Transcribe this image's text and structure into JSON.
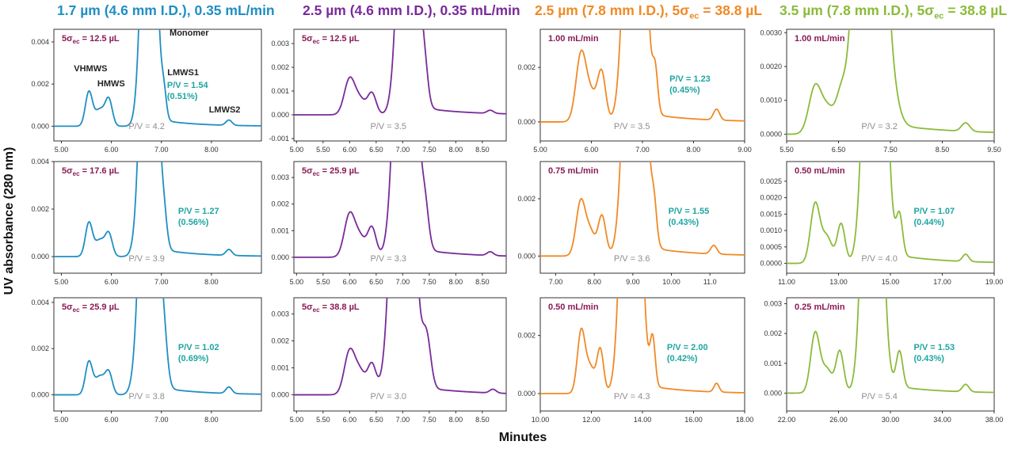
{
  "figure": {
    "ylabel": "UV absorbance (280 nm)",
    "xlabel": "Minutes"
  },
  "columns": [
    {
      "title": "1.7 µm (4.6 mm I.D.), 0.35 mL/min",
      "color": "#1f8fc2"
    },
    {
      "title": "2.5 µm (4.6 mm I.D.), 0.35 mL/min",
      "color": "#7a2a9a"
    },
    {
      "title_prefix": "2.5 µm (7.8 mm I.D.), 5σ",
      "title_sub": "ec",
      "title_suffix": " = 38.8 µL",
      "color": "#f08a26"
    },
    {
      "title_prefix": "3.5 µm (7.8 mm I.D.), 5σ",
      "title_sub": "ec",
      "title_suffix": " = 38.8 µL",
      "color": "#8bbb3a"
    }
  ],
  "chart_data": [
    {
      "type": "line",
      "row": 0,
      "col": 0,
      "xlim": [
        4.85,
        9.0
      ],
      "ylim": [
        -0.0007,
        0.0046
      ],
      "xticks": [
        "5.00",
        "6.00",
        "7.00",
        "8.00"
      ],
      "xtick_values": [
        5,
        6,
        7,
        8
      ],
      "yticks": [
        "0.000",
        "0.002",
        "0.004"
      ],
      "ytick_values": [
        0,
        0.002,
        0.004
      ],
      "label_prefix": "5σ",
      "label_sub": "ec",
      "label_suffix": " = 12.5 µL",
      "pv_main": "P/V = 4.2",
      "pv_lmw": "P/V = 1.54",
      "pv_pct": "(0.51%)",
      "peak_labels": [
        "VHMWS",
        "HMWS",
        "Monomer",
        "LMWS1",
        "LMWS2"
      ],
      "baseline": 0,
      "monomer_t": 6.75,
      "monomer_w": 0.12,
      "peaks": [
        [
          5.55,
          0.0016,
          0.07
        ],
        [
          5.77,
          0.0008,
          0.1
        ],
        [
          5.95,
          0.0012,
          0.07
        ],
        [
          7.05,
          0.0011,
          0.05
        ],
        [
          8.35,
          0.00025,
          0.06
        ]
      ]
    },
    {
      "type": "line",
      "row": 0,
      "col": 1,
      "xlim": [
        4.95,
        8.95
      ],
      "ylim": [
        -0.0011,
        0.0036
      ],
      "xticks": [
        "5.00",
        "5.50",
        "6.00",
        "6.50",
        "7.00",
        "7.50",
        "8.00",
        "8.50"
      ],
      "xtick_values": [
        5,
        5.5,
        6,
        6.5,
        7,
        7.5,
        8,
        8.5
      ],
      "yticks": [
        "-0.001",
        "0.000",
        "0.001",
        "0.002",
        "0.003"
      ],
      "ytick_values": [
        -0.001,
        0,
        0.001,
        0.002,
        0.003
      ],
      "label_prefix": "5σ",
      "label_sub": "ec",
      "label_suffix": " = 12.5 µL",
      "pv_main": "P/V = 3.5",
      "baseline": 0,
      "monomer_t": 7.1,
      "monomer_w": 0.14,
      "peaks": [
        [
          6.0,
          0.0015,
          0.1
        ],
        [
          6.2,
          0.0006,
          0.1
        ],
        [
          6.42,
          0.0009,
          0.08
        ],
        [
          7.42,
          0.0011,
          0.06
        ],
        [
          8.65,
          0.00013,
          0.06
        ]
      ]
    },
    {
      "type": "line",
      "row": 0,
      "col": 2,
      "xlim": [
        5.0,
        9.0
      ],
      "ylim": [
        -0.0007,
        0.0034
      ],
      "xticks": [
        "5.00",
        "6.00",
        "7.00",
        "8.00",
        "9.00"
      ],
      "xtick_values": [
        5,
        6,
        7,
        8,
        9
      ],
      "yticks": [
        "0.000",
        "0.002"
      ],
      "ytick_values": [
        0,
        0.002
      ],
      "label": "1.00 mL/min",
      "pv_main": "P/V = 3.5",
      "pv_lmw": "P/V = 1.23",
      "pv_pct": "(0.45%)",
      "baseline": 0,
      "monomer_t": 6.85,
      "monomer_w": 0.15,
      "peaks": [
        [
          5.8,
          0.0025,
          0.1
        ],
        [
          6.0,
          0.0009,
          0.1
        ],
        [
          6.2,
          0.0018,
          0.08
        ],
        [
          7.25,
          0.0014,
          0.05
        ],
        [
          8.45,
          0.0004,
          0.06
        ]
      ]
    },
    {
      "type": "line",
      "row": 0,
      "col": 3,
      "xlim": [
        5.5,
        9.5
      ],
      "ylim": [
        -0.0002,
        0.0031
      ],
      "xticks": [
        "5.50",
        "6.50",
        "7.50",
        "8.50",
        "9.50"
      ],
      "xtick_values": [
        5.5,
        6.5,
        7.5,
        8.5,
        9.5
      ],
      "yticks": [
        "0.0000",
        "0.0010",
        "0.0020",
        "0.0030"
      ],
      "ytick_values": [
        0,
        0.001,
        0.002,
        0.003
      ],
      "label": "1.00 mL/min",
      "pv_main": "P/V = 3.2",
      "baseline": 0,
      "monomer_t": 7.1,
      "monomer_w": 0.2,
      "peaks": [
        [
          6.05,
          0.0014,
          0.12
        ],
        [
          6.3,
          0.0007,
          0.12
        ],
        [
          6.55,
          0.001,
          0.1
        ],
        [
          7.5,
          0.0006,
          0.15
        ],
        [
          8.95,
          0.00025,
          0.08
        ]
      ]
    },
    {
      "type": "line",
      "row": 1,
      "col": 0,
      "xlim": [
        4.85,
        9.0
      ],
      "ylim": [
        -0.0007,
        0.004
      ],
      "xticks": [
        "5.00",
        "6.00",
        "7.00",
        "8.00"
      ],
      "xtick_values": [
        5,
        6,
        7,
        8
      ],
      "yticks": [
        "0.000",
        "0.002",
        "0.004"
      ],
      "ytick_values": [
        0,
        0.002,
        0.004
      ],
      "label_prefix": "5σ",
      "label_sub": "ec",
      "label_suffix": " = 17.6 µL",
      "pv_main": "P/V = 3.9",
      "pv_lmw": "P/V = 1.27",
      "pv_pct": "(0.56%)",
      "baseline": 0,
      "monomer_t": 6.75,
      "monomer_w": 0.13,
      "peaks": [
        [
          5.55,
          0.0014,
          0.07
        ],
        [
          5.77,
          0.0007,
          0.1
        ],
        [
          5.95,
          0.0009,
          0.07
        ],
        [
          7.05,
          0.0011,
          0.06
        ],
        [
          8.35,
          0.00025,
          0.06
        ]
      ]
    },
    {
      "type": "line",
      "row": 1,
      "col": 1,
      "xlim": [
        4.95,
        8.95
      ],
      "ylim": [
        -0.0006,
        0.0036
      ],
      "xticks": [
        "5.00",
        "5.50",
        "6.00",
        "6.50",
        "7.00",
        "7.50",
        "8.00",
        "8.50"
      ],
      "xtick_values": [
        5,
        5.5,
        6,
        6.5,
        7,
        7.5,
        8,
        8.5
      ],
      "yticks": [
        "0.000",
        "0.001",
        "0.002",
        "0.003"
      ],
      "ytick_values": [
        0,
        0.001,
        0.002,
        0.003
      ],
      "label_prefix": "5σ",
      "label_sub": "ec",
      "label_suffix": " = 25.9 µL",
      "pv_main": "P/V = 3.3",
      "baseline": 0,
      "monomer_t": 7.05,
      "monomer_w": 0.15,
      "peaks": [
        [
          6.0,
          0.0016,
          0.1
        ],
        [
          6.2,
          0.0007,
          0.1
        ],
        [
          6.42,
          0.0011,
          0.08
        ],
        [
          7.42,
          0.0014,
          0.07
        ],
        [
          8.65,
          0.00014,
          0.06
        ]
      ]
    },
    {
      "type": "line",
      "row": 1,
      "col": 2,
      "xlim": [
        6.6,
        11.9
      ],
      "ylim": [
        -0.0006,
        0.0033
      ],
      "xticks": [
        "7.00",
        "8.00",
        "9.00",
        "10.00",
        "11.0"
      ],
      "xtick_values": [
        7,
        8,
        9,
        10,
        11
      ],
      "yticks": [
        "0.000",
        "0.002"
      ],
      "ytick_values": [
        0,
        0.002
      ],
      "label": "0.75 mL/min",
      "pv_main": "P/V = 3.6",
      "pv_lmw": "P/V = 1.55",
      "pv_pct": "(0.43%)",
      "baseline": 0,
      "monomer_t": 9.05,
      "monomer_w": 0.2,
      "peaks": [
        [
          7.65,
          0.0019,
          0.12
        ],
        [
          7.9,
          0.0008,
          0.12
        ],
        [
          8.2,
          0.0014,
          0.1
        ],
        [
          9.55,
          0.0012,
          0.07
        ],
        [
          11.1,
          0.0003,
          0.08
        ]
      ]
    },
    {
      "type": "line",
      "row": 1,
      "col": 3,
      "xlim": [
        11.0,
        19.0
      ],
      "ylim": [
        -0.0003,
        0.0031
      ],
      "xticks": [
        "11.00",
        "13.00",
        "15.00",
        "17.00",
        "19.00"
      ],
      "xtick_values": [
        11,
        13,
        15,
        17,
        19
      ],
      "yticks": [
        "0.0000",
        "0.0005",
        "0.0010",
        "0.0015",
        "0.0020",
        "0.0025"
      ],
      "ytick_values": [
        0,
        0.0005,
        0.001,
        0.0015,
        0.002,
        0.0025
      ],
      "label": "0.50 mL/min",
      "pv_main": "P/V = 4.0",
      "pv_lmw": "P/V = 1.07",
      "pv_pct": "(0.44%)",
      "baseline": 0,
      "monomer_t": 14.4,
      "monomer_w": 0.3,
      "peaks": [
        [
          12.1,
          0.0018,
          0.18
        ],
        [
          12.55,
          0.0008,
          0.2
        ],
        [
          13.1,
          0.0012,
          0.15
        ],
        [
          15.35,
          0.0012,
          0.12
        ],
        [
          17.9,
          0.00022,
          0.12
        ]
      ]
    },
    {
      "type": "line",
      "row": 2,
      "col": 0,
      "xlim": [
        4.85,
        9.0
      ],
      "ylim": [
        -0.0007,
        0.0042
      ],
      "xticks": [
        "5.00",
        "6.00",
        "7.00",
        "8.00"
      ],
      "xtick_values": [
        5,
        6,
        7,
        8
      ],
      "yticks": [
        "0.000",
        "0.002",
        "0.004"
      ],
      "ytick_values": [
        0,
        0.002,
        0.004
      ],
      "label_prefix": "5σ",
      "label_sub": "ec",
      "label_suffix": " = 25.9 µL",
      "pv_main": "P/V = 3.8",
      "pv_lmw": "P/V = 1.02",
      "pv_pct": "(0.69%)",
      "baseline": 0,
      "monomer_t": 6.75,
      "monomer_w": 0.14,
      "peaks": [
        [
          5.55,
          0.0014,
          0.07
        ],
        [
          5.77,
          0.0008,
          0.1
        ],
        [
          5.95,
          0.0009,
          0.07
        ],
        [
          7.05,
          0.0016,
          0.07
        ],
        [
          8.35,
          0.00028,
          0.06
        ]
      ]
    },
    {
      "type": "line",
      "row": 2,
      "col": 1,
      "xlim": [
        4.95,
        8.95
      ],
      "ylim": [
        -0.0006,
        0.0036
      ],
      "xticks": [
        "5.00",
        "5.50",
        "6.00",
        "6.50",
        "7.00",
        "7.50",
        "8.00",
        "8.50"
      ],
      "xtick_values": [
        5,
        5.5,
        6,
        6.5,
        7,
        7.5,
        8,
        8.5
      ],
      "yticks": [
        "0.000",
        "0.001",
        "0.002",
        "0.003"
      ],
      "ytick_values": [
        0,
        0.001,
        0.002,
        0.003
      ],
      "label_prefix": "5σ",
      "label_sub": "ec",
      "label_suffix": " = 38.8 µL",
      "pv_main": "P/V = 3.0",
      "baseline": 0,
      "monomer_t": 7.0,
      "monomer_w": 0.16,
      "peaks": [
        [
          6.0,
          0.0016,
          0.1
        ],
        [
          6.2,
          0.0008,
          0.1
        ],
        [
          6.42,
          0.0011,
          0.08
        ],
        [
          7.45,
          0.0018,
          0.08
        ],
        [
          8.7,
          0.00014,
          0.06
        ]
      ]
    },
    {
      "type": "line",
      "row": 2,
      "col": 2,
      "xlim": [
        10.0,
        18.0
      ],
      "ylim": [
        -0.0006,
        0.0033
      ],
      "xticks": [
        "10.00",
        "12.00",
        "14.00",
        "16.00",
        "18.00"
      ],
      "xtick_values": [
        10,
        12,
        14,
        16,
        18
      ],
      "yticks": [
        "0.000",
        "0.002"
      ],
      "ytick_values": [
        0,
        0.002
      ],
      "label": "0.50 mL/min",
      "pv_main": "P/V = 4.3",
      "pv_lmw": "P/V = 2.00",
      "pv_pct": "(0.42%)",
      "baseline": 0,
      "monomer_t": 13.55,
      "monomer_w": 0.28,
      "peaks": [
        [
          11.6,
          0.0021,
          0.15
        ],
        [
          11.95,
          0.0009,
          0.18
        ],
        [
          12.35,
          0.0015,
          0.13
        ],
        [
          14.4,
          0.0016,
          0.1
        ],
        [
          16.9,
          0.0003,
          0.1
        ]
      ]
    },
    {
      "type": "line",
      "row": 2,
      "col": 3,
      "xlim": [
        22.0,
        38.0
      ],
      "ylim": [
        -0.0006,
        0.0032
      ],
      "xticks": [
        "22.00",
        "26.00",
        "30.00",
        "34.00",
        "38.00"
      ],
      "xtick_values": [
        22,
        26,
        30,
        34,
        38
      ],
      "yticks": [
        "0.000",
        "0.001",
        "0.002",
        "0.003"
      ],
      "ytick_values": [
        0,
        0.001,
        0.002,
        0.003
      ],
      "label": "0.25 mL/min",
      "pv_main": "P/V = 5.4",
      "pv_lmw": "P/V = 1.53",
      "pv_pct": "(0.43%)",
      "baseline": 0,
      "monomer_t": 28.6,
      "monomer_w": 0.55,
      "peaks": [
        [
          24.2,
          0.002,
          0.35
        ],
        [
          25.1,
          0.0008,
          0.4
        ],
        [
          26.1,
          0.0014,
          0.3
        ],
        [
          30.7,
          0.0012,
          0.25
        ],
        [
          35.8,
          0.00025,
          0.25
        ]
      ]
    }
  ]
}
